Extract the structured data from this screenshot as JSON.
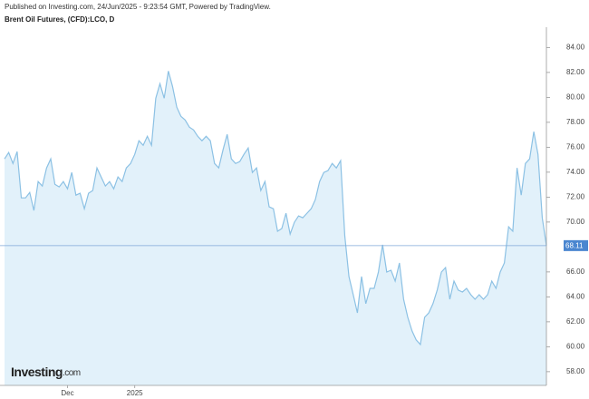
{
  "chart_data": {
    "type": "area",
    "header": "Published on Investing.com, 24/Jun/2025 - 9:23:54 GMT, Powered by TradingView.",
    "title": "Brent Oil Futures, (CFD):LCO, D",
    "logo": {
      "brand": "Investing",
      "suffix": ".com"
    },
    "categories": [
      null,
      null,
      null,
      null,
      null,
      null,
      null,
      null,
      null,
      null,
      null,
      null,
      null,
      null,
      null,
      "Dec",
      null,
      null,
      null,
      null,
      null,
      null,
      null,
      null,
      null,
      null,
      null,
      null,
      null,
      null,
      null,
      "2025",
      null,
      null,
      null,
      null,
      null,
      null,
      null,
      null,
      null,
      null,
      null,
      null,
      null,
      null,
      null,
      null,
      null,
      null,
      null,
      null,
      null,
      null,
      null,
      null,
      null,
      null,
      null,
      null,
      null,
      null,
      null,
      null,
      null,
      null,
      null,
      null,
      null,
      null,
      null,
      null,
      null,
      null,
      null,
      null,
      null,
      null,
      null,
      null,
      null,
      null,
      null,
      null,
      null,
      null,
      null,
      null,
      null,
      null,
      null,
      null,
      null,
      null,
      null,
      null,
      null,
      null,
      null,
      null,
      null,
      null,
      null,
      null,
      null,
      null,
      null,
      null,
      null,
      null,
      null,
      null,
      null,
      null,
      null,
      null,
      null,
      null,
      null,
      null,
      null,
      null,
      null,
      null,
      null,
      null,
      null,
      null,
      null,
      null
    ],
    "values": [
      75.07,
      75.58,
      74.7,
      75.65,
      71.94,
      71.94,
      72.38,
      70.93,
      73.25,
      72.89,
      74.34,
      75.07,
      73.03,
      72.82,
      73.25,
      72.67,
      73.98,
      72.16,
      72.31,
      71.07,
      72.31,
      72.53,
      74.34,
      73.62,
      72.89,
      73.25,
      72.67,
      73.62,
      73.25,
      74.34,
      74.7,
      75.43,
      76.52,
      76.16,
      76.88,
      76.16,
      79.93,
      81.1,
      79.93,
      82.11,
      80.88,
      79.21,
      78.48,
      78.19,
      77.61,
      77.39,
      76.88,
      76.52,
      76.88,
      76.52,
      74.7,
      74.34,
      75.79,
      77.03,
      75.07,
      74.7,
      74.85,
      75.43,
      75.94,
      73.98,
      74.34,
      72.53,
      73.25,
      71.22,
      71.07,
      69.26,
      69.48,
      70.71,
      69.04,
      69.98,
      70.49,
      70.35,
      70.71,
      71.07,
      71.8,
      73.25,
      73.98,
      74.12,
      74.7,
      74.34,
      74.92,
      68.89,
      65.63,
      64.17,
      62.72,
      65.63,
      63.45,
      64.68,
      64.68,
      65.99,
      68.17,
      65.99,
      66.14,
      65.26,
      66.72,
      63.81,
      62.36,
      61.27,
      60.54,
      60.18,
      62.36,
      62.72,
      63.45,
      64.54,
      65.99,
      66.35,
      63.81,
      65.26,
      64.54,
      64.39,
      64.68,
      64.17,
      63.81,
      64.17,
      63.81,
      64.17,
      65.26,
      64.68,
      65.99,
      66.72,
      69.62,
      69.26,
      74.34,
      72.16,
      74.7,
      75.07,
      77.25,
      75.43,
      70.35,
      68.11
    ],
    "last_price": 68.11,
    "color": "#8cc1e4",
    "fill": "#e2f1fa",
    "ylim": [
      56.9,
      84.9
    ],
    "yticks": [
      {
        "value": 84,
        "label": "84.00"
      },
      {
        "value": 82,
        "label": "82.00"
      },
      {
        "value": 80,
        "label": "80.00"
      },
      {
        "value": 78,
        "label": "78.00"
      },
      {
        "value": 76,
        "label": "76.00"
      },
      {
        "value": 74,
        "label": "74.00"
      },
      {
        "value": 72,
        "label": "72.00"
      },
      {
        "value": 70,
        "label": "70.00"
      },
      {
        "value": 66,
        "label": "66.00"
      },
      {
        "value": 64,
        "label": "64.00"
      },
      {
        "value": 62,
        "label": "62.00"
      },
      {
        "value": 60,
        "label": "60.00"
      },
      {
        "value": 58,
        "label": "58.00"
      }
    ],
    "grid": false
  }
}
